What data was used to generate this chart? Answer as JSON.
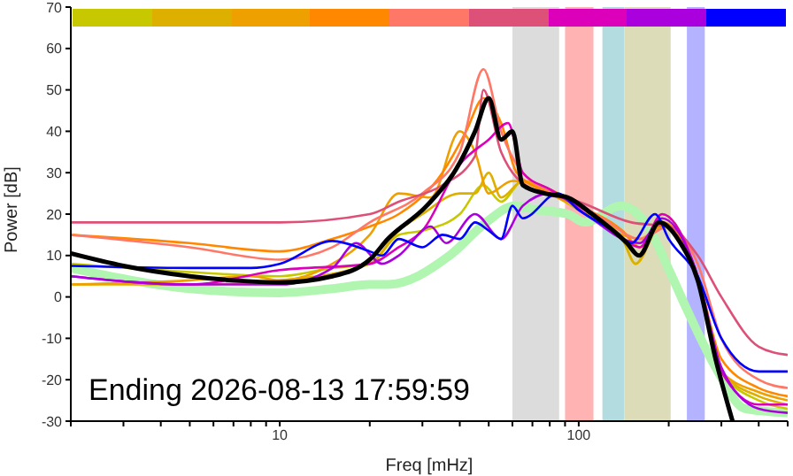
{
  "chart_data": {
    "type": "line",
    "xlabel": "Freq [mHz]",
    "ylabel": "Power [dB]",
    "log": "x",
    "xlim": [
      2,
      500
    ],
    "ylim": [
      -30,
      70
    ],
    "xticks": [
      {
        "value": 2,
        "label": null
      },
      {
        "value": 3,
        "label": null
      },
      {
        "value": 4,
        "label": null
      },
      {
        "value": 5,
        "label": null
      },
      {
        "value": 6,
        "label": null
      },
      {
        "value": 7,
        "label": null
      },
      {
        "value": 8,
        "label": null
      },
      {
        "value": 9,
        "label": null
      },
      10,
      {
        "value": 20,
        "label": null
      },
      {
        "value": 30,
        "label": null
      },
      {
        "value": 40,
        "label": null
      },
      {
        "value": 50,
        "label": null
      },
      {
        "value": 60,
        "label": null
      },
      {
        "value": 70,
        "label": null
      },
      {
        "value": 80,
        "label": null
      },
      {
        "value": 90,
        "label": null
      },
      100,
      {
        "value": 200,
        "label": null
      },
      {
        "value": 300,
        "label": null
      },
      {
        "value": 400,
        "label": null
      },
      {
        "value": 500,
        "label": null
      }
    ],
    "yticks": [
      -30,
      -20,
      -10,
      0,
      10,
      20,
      30,
      40,
      50,
      60,
      70
    ],
    "grid": false,
    "marker": "none",
    "line_style": "solid",
    "bands": [
      {
        "axis": "x",
        "from": 60,
        "to": 86,
        "color": "#dcdcdc"
      },
      {
        "axis": "x",
        "from": 90,
        "to": 112,
        "color": "#ffb3b3"
      },
      {
        "axis": "x",
        "from": 120,
        "to": 142,
        "color": "#b3dce0"
      },
      {
        "axis": "x",
        "from": 142,
        "to": 203,
        "color": "#dcdcb8"
      },
      {
        "axis": "x",
        "from": 230,
        "to": 264,
        "color": "#b3b3ff"
      }
    ],
    "annotations": [
      "Ending 2026-08-13 17:59:59"
    ],
    "series": [
      {
        "color": "#b0f5b0",
        "x": [
          2,
          5,
          10,
          15,
          20,
          23,
          37,
          49,
          61,
          73,
          92,
          105,
          138,
          167,
          199,
          230,
          287,
          360,
          500
        ],
        "values": [
          7,
          2,
          1,
          2,
          3,
          3,
          10,
          18,
          22,
          21,
          20,
          18,
          22,
          18,
          7,
          -3,
          -17,
          -27,
          -28
        ]
      },
      {
        "color": "#c8c800",
        "x": [
          2,
          5,
          10,
          15,
          20,
          25,
          30,
          40,
          48,
          55,
          65,
          90,
          110,
          140,
          155,
          190,
          250,
          300,
          400,
          500
        ],
        "values": [
          8,
          6,
          5,
          7,
          8,
          15,
          16,
          20,
          27,
          23,
          28,
          24,
          20,
          14,
          8,
          20,
          5,
          -18,
          -25,
          -27
        ]
      },
      {
        "color": "#ddb000",
        "x": [
          2,
          5,
          10,
          20,
          25,
          30,
          40,
          45,
          50,
          55,
          65,
          80,
          100,
          140,
          155,
          190,
          250,
          300,
          400,
          500
        ],
        "values": [
          3,
          3,
          4,
          8,
          16,
          20,
          25,
          25,
          30,
          24,
          28,
          25,
          21,
          14,
          8,
          18,
          5,
          -18,
          -24,
          -26
        ]
      },
      {
        "color": "#eea000",
        "x": [
          2,
          5,
          8,
          10,
          15,
          20,
          25,
          32,
          40,
          45,
          50,
          60,
          80,
          100,
          140,
          160,
          190,
          250,
          300,
          400,
          500
        ],
        "values": [
          3,
          4,
          5,
          4,
          8,
          15,
          25,
          24,
          40,
          35,
          25,
          28,
          26,
          22,
          15,
          14,
          17,
          5,
          -18,
          -23,
          -25
        ]
      },
      {
        "color": "#ff8800",
        "x": [
          2,
          5,
          10,
          15,
          20,
          25,
          35,
          42,
          48,
          55,
          62,
          80,
          100,
          140,
          160,
          190,
          250,
          300,
          400,
          500
        ],
        "values": [
          15,
          13,
          11,
          14,
          17,
          20,
          30,
          40,
          48,
          42,
          30,
          25,
          22,
          16,
          12,
          18,
          5,
          -15,
          -22,
          -24
        ]
      },
      {
        "color": "#ff7766",
        "x": [
          2,
          5,
          10,
          15,
          20,
          30,
          40,
          48,
          55,
          65,
          90,
          120,
          160,
          200,
          250,
          300,
          400,
          500
        ],
        "values": [
          15,
          12,
          9,
          12,
          18,
          25,
          35,
          55,
          40,
          30,
          24,
          19,
          14,
          17,
          8,
          -10,
          -20,
          -22
        ]
      },
      {
        "color": "#dd5077",
        "x": [
          2,
          5,
          10,
          20,
          25,
          35,
          45,
          48,
          55,
          70,
          100,
          150,
          200,
          250,
          300,
          400,
          500
        ],
        "values": [
          18,
          18,
          18,
          20,
          23,
          27,
          34,
          50,
          35,
          26,
          23,
          18,
          17,
          10,
          0,
          -12,
          -14
        ]
      },
      {
        "color": "#dd00bb",
        "x": [
          2,
          5,
          10,
          20,
          25,
          30,
          40,
          50,
          58,
          65,
          80,
          110,
          140,
          160,
          190,
          250,
          300,
          400,
          500
        ],
        "values": [
          5,
          3,
          6.5,
          8,
          12,
          16,
          32,
          38,
          42,
          30,
          26,
          20,
          14,
          12,
          20,
          5,
          -18,
          -26,
          -26
        ]
      },
      {
        "color": "#aa00dd",
        "x": [
          2,
          5,
          10,
          15,
          18,
          22,
          25,
          32,
          36,
          45,
          55,
          65,
          80,
          110,
          140,
          160,
          190,
          250,
          300,
          400,
          500
        ],
        "values": [
          5,
          3,
          3,
          7,
          13,
          8,
          10,
          17,
          13,
          20,
          14,
          22,
          25,
          19,
          14,
          13,
          19,
          5,
          -17,
          -27,
          -28
        ]
      },
      {
        "color": "#0000ff",
        "x": [
          2,
          5,
          8,
          10,
          15,
          20,
          22,
          25,
          30,
          35,
          40,
          45,
          50,
          55,
          60,
          65,
          85,
          100,
          130,
          150,
          180,
          200,
          250,
          300,
          400,
          500
        ],
        "values": [
          7.5,
          7,
          7,
          8,
          13.5,
          11,
          10,
          14,
          12,
          15,
          14,
          18,
          16,
          14,
          22,
          19,
          25,
          21,
          16,
          13,
          20,
          14,
          5,
          -10,
          -18,
          -18
        ]
      },
      {
        "color": "#000000",
        "x": [
          2,
          3,
          5,
          7,
          10,
          15,
          20,
          23,
          31,
          39,
          45,
          50,
          55,
          60,
          65,
          77,
          92,
          111,
          145,
          159,
          186,
          219,
          250,
          287,
          327
        ],
        "values": [
          10.5,
          7.5,
          5,
          4,
          3.5,
          5,
          9,
          14,
          22,
          31,
          40,
          48,
          38,
          40,
          27,
          25,
          24,
          20,
          13,
          10,
          18,
          13,
          4,
          -15,
          -30
        ]
      }
    ]
  }
}
